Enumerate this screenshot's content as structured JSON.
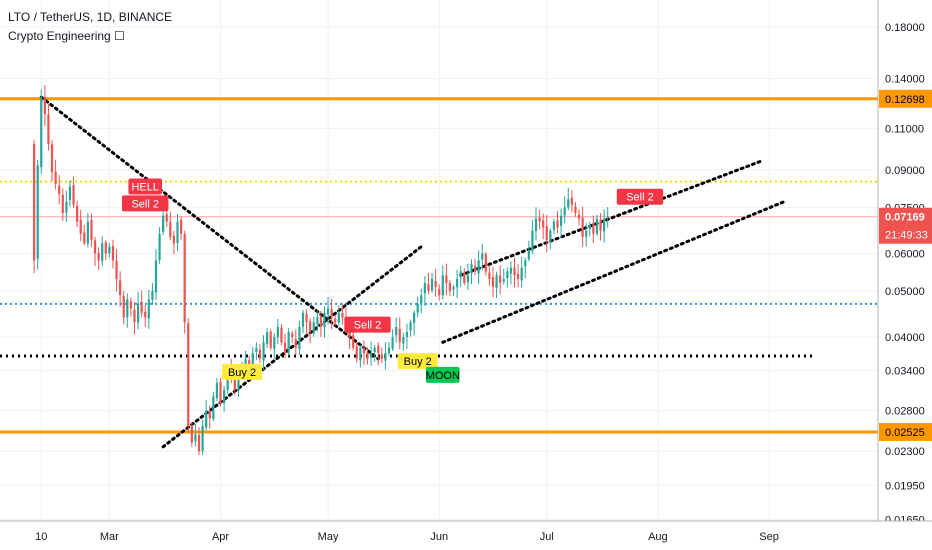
{
  "header": {
    "symbol_line": "LTO / TetherUS, 1D, BINANCE",
    "indicator_line": "Crypto Engineering ☐"
  },
  "colors": {
    "up": "#26a69a",
    "down": "#ef5350",
    "orange": "#ff9800",
    "blue_dotted": "#2196f3",
    "yellow_dotted": "#f5d800",
    "price_line": "#f7a5a5",
    "grid": "#eef0f4",
    "trendline": "#000000",
    "label_red": "#f23645",
    "label_yellow": "#ffeb3b",
    "label_green": "#00c853"
  },
  "chart_data": {
    "type": "candlestick",
    "y_scale": "log",
    "ylim": [
      0.0164,
      0.205
    ],
    "y_ticks": [
      "0.18000",
      "0.14000",
      "0.11000",
      "0.09000",
      "0.07500",
      "0.06000",
      "0.05000",
      "0.04000",
      "0.03400",
      "0.02800",
      "0.02300",
      "0.01950",
      "0.01650"
    ],
    "x_ticks": [
      {
        "label": "10",
        "date": "2021-02-10"
      },
      {
        "label": "Mar",
        "date": "2021-03-01"
      },
      {
        "label": "Apr",
        "date": "2021-04-01"
      },
      {
        "label": "May",
        "date": "2021-05-01"
      },
      {
        "label": "Jun",
        "date": "2021-06-01"
      },
      {
        "label": "Jul",
        "date": "2021-07-01"
      },
      {
        "label": "Aug",
        "date": "2021-08-01"
      },
      {
        "label": "Sep",
        "date": "2021-09-01"
      }
    ],
    "x_range": [
      "2021-02-01",
      "2021-09-30"
    ],
    "candles_start_date": "2021-02-08",
    "closes": [
      0.058,
      0.092,
      0.128,
      0.118,
      0.102,
      0.089,
      0.084,
      0.08,
      0.073,
      0.077,
      0.083,
      0.076,
      0.07,
      0.066,
      0.063,
      0.07,
      0.064,
      0.06,
      0.058,
      0.063,
      0.06,
      0.062,
      0.058,
      0.053,
      0.049,
      0.044,
      0.048,
      0.046,
      0.043,
      0.047,
      0.045,
      0.044,
      0.048,
      0.05,
      0.058,
      0.066,
      0.072,
      0.07,
      0.065,
      0.063,
      0.07,
      0.066,
      0.043,
      0.026,
      0.024,
      0.025,
      0.023,
      0.026,
      0.028,
      0.027,
      0.03,
      0.032,
      0.029,
      0.031,
      0.034,
      0.033,
      0.031,
      0.034,
      0.035,
      0.036,
      0.034,
      0.037,
      0.038,
      0.036,
      0.039,
      0.041,
      0.038,
      0.04,
      0.042,
      0.039,
      0.037,
      0.041,
      0.04,
      0.038,
      0.042,
      0.045,
      0.043,
      0.041,
      0.043,
      0.044,
      0.042,
      0.045,
      0.046,
      0.044,
      0.043,
      0.045,
      0.044,
      0.042,
      0.04,
      0.038,
      0.036,
      0.038,
      0.037,
      0.036,
      0.037,
      0.038,
      0.037,
      0.036,
      0.037,
      0.038,
      0.04,
      0.042,
      0.039,
      0.04,
      0.041,
      0.043,
      0.045,
      0.047,
      0.049,
      0.052,
      0.05,
      0.053,
      0.051,
      0.049,
      0.054,
      0.052,
      0.05,
      0.051,
      0.053,
      0.055,
      0.052,
      0.054,
      0.057,
      0.055,
      0.058,
      0.06,
      0.055,
      0.053,
      0.051,
      0.054,
      0.052,
      0.053,
      0.055,
      0.056,
      0.054,
      0.053,
      0.056,
      0.058,
      0.061,
      0.067,
      0.071,
      0.07,
      0.068,
      0.064,
      0.067,
      0.07,
      0.068,
      0.072,
      0.075,
      0.078,
      0.076,
      0.073,
      0.071,
      0.065,
      0.067,
      0.069,
      0.066,
      0.071,
      0.067,
      0.071,
      0.07169
    ],
    "horizontal_levels": [
      {
        "price": 0.12698,
        "style": "solid",
        "color_key": "orange",
        "label": "0.12698"
      },
      {
        "price": 0.02525,
        "style": "solid",
        "color_key": "orange",
        "label": "0.02525"
      },
      {
        "price": 0.085,
        "style": "dotted",
        "color_key": "yellow_dotted"
      },
      {
        "price": 0.047,
        "style": "dotted",
        "color_key": "blue_dotted"
      },
      {
        "price": 0.0365,
        "style": "dotted",
        "color_key": "trendline"
      },
      {
        "price": 0.07169,
        "style": "solid",
        "color_key": "price_line"
      }
    ],
    "trendlines": [
      {
        "from": [
          "2021-02-10",
          0.128
        ],
        "to": [
          "2021-05-15",
          0.036
        ]
      },
      {
        "from": [
          "2021-03-16",
          0.0235
        ],
        "to": [
          "2021-05-27",
          0.062
        ]
      },
      {
        "from": [
          "2021-06-02",
          0.039
        ],
        "to": [
          "2021-09-05",
          0.077
        ]
      },
      {
        "from": [
          "2021-06-07",
          0.054
        ],
        "to": [
          "2021-08-30",
          0.094
        ]
      }
    ],
    "last_price": {
      "value": "0.07169",
      "countdown": "21:49:33"
    },
    "signals": [
      {
        "text": "HELL",
        "date": "2021-03-11",
        "price": 0.083,
        "style": "red"
      },
      {
        "text": "Sell 2",
        "date": "2021-03-11",
        "price": 0.0765,
        "style": "red"
      },
      {
        "text": "Buy 2",
        "date": "2021-04-07",
        "price": 0.0338,
        "style": "yellow"
      },
      {
        "text": "Sell 2",
        "date": "2021-05-12",
        "price": 0.0425,
        "style": "red"
      },
      {
        "text": "Buy 2",
        "date": "2021-05-26",
        "price": 0.0356,
        "style": "yellow"
      },
      {
        "text": "MOON",
        "date": "2021-06-02",
        "price": 0.0333,
        "style": "green"
      },
      {
        "text": "Sell 2",
        "date": "2021-07-27",
        "price": 0.079,
        "style": "red"
      }
    ]
  }
}
